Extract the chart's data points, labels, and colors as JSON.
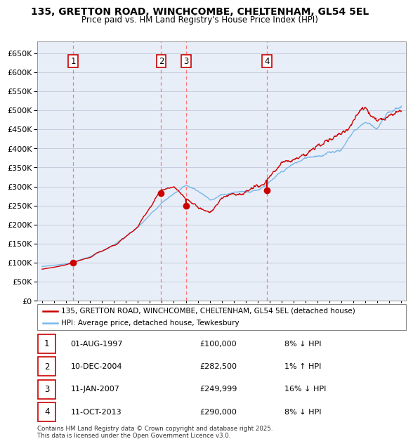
{
  "title": "135, GRETTON ROAD, WINCHCOMBE, CHELTENHAM, GL54 5EL",
  "subtitle": "Price paid vs. HM Land Registry's House Price Index (HPI)",
  "ylim": [
    0,
    680000
  ],
  "yticks": [
    0,
    50000,
    100000,
    150000,
    200000,
    250000,
    300000,
    350000,
    400000,
    450000,
    500000,
    550000,
    600000,
    650000
  ],
  "xlim_start": 1994.6,
  "xlim_end": 2025.4,
  "sale_dates": [
    1997.58,
    2004.94,
    2007.03,
    2013.78
  ],
  "sale_prices": [
    100000,
    282500,
    249999,
    290000
  ],
  "sale_labels": [
    "1",
    "2",
    "3",
    "4"
  ],
  "hpi_color": "#7ab8e8",
  "price_color": "#cc0000",
  "dashed_color": "#ff7777",
  "background_color": "#e8eef8",
  "grid_color": "#c0c8d8",
  "legend_entries": [
    "135, GRETTON ROAD, WINCHCOMBE, CHELTENHAM, GL54 5EL (detached house)",
    "HPI: Average price, detached house, Tewkesbury"
  ],
  "table_data": [
    [
      "1",
      "01-AUG-1997",
      "£100,000",
      "8% ↓ HPI"
    ],
    [
      "2",
      "10-DEC-2004",
      "£282,500",
      "1% ↑ HPI"
    ],
    [
      "3",
      "11-JAN-2007",
      "£249,999",
      "16% ↓ HPI"
    ],
    [
      "4",
      "11-OCT-2013",
      "£290,000",
      "8% ↓ HPI"
    ]
  ],
  "footer": "Contains HM Land Registry data © Crown copyright and database right 2025.\nThis data is licensed under the Open Government Licence v3.0."
}
